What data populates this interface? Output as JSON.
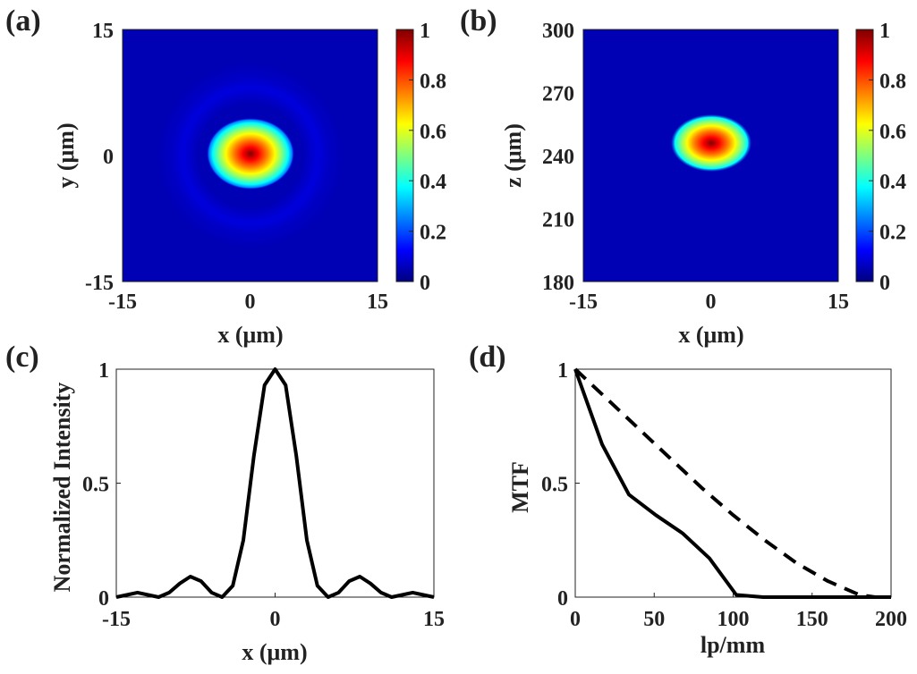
{
  "panel_labels": {
    "a": "(a)",
    "b": "(b)",
    "c": "(c)",
    "d": "(d)"
  },
  "colormap": {
    "name": "jet",
    "stops": [
      "#00007f",
      "#0000ff",
      "#007fff",
      "#00ffff",
      "#7fff7f",
      "#ffff00",
      "#ff7f00",
      "#ff0000",
      "#7f0000"
    ]
  },
  "chart_data": [
    {
      "id": "a",
      "type": "heatmap",
      "title": "",
      "xlabel": "x (μm)",
      "ylabel": "y (μm)",
      "xlim": [
        -15,
        15
      ],
      "ylim": [
        -15,
        15
      ],
      "xticks": [
        "-15",
        "0",
        "15"
      ],
      "yticks": [
        "15",
        "0",
        "-15"
      ],
      "spot": {
        "cx": 0,
        "cy": 0,
        "radius": 4
      },
      "colorbar": {
        "range": [
          0,
          1
        ],
        "ticks": [
          "1",
          "0.8",
          "0.6",
          "0.4",
          "0.2",
          "0"
        ]
      }
    },
    {
      "id": "b",
      "type": "heatmap",
      "title": "",
      "xlabel": "x (μm)",
      "ylabel": "z (μm)",
      "xlim": [
        -15,
        15
      ],
      "ylim": [
        180,
        300
      ],
      "xticks": [
        "-15",
        "0",
        "15"
      ],
      "yticks": [
        "300",
        "270",
        "240",
        "210",
        "180"
      ],
      "spot": {
        "cx": 0,
        "cy": 245,
        "halfwidth_x": 5,
        "halfwidth_z": 10
      },
      "colorbar": {
        "range": [
          0,
          1
        ],
        "ticks": [
          "1",
          "0.8",
          "0.6",
          "0.4",
          "0.2",
          "0"
        ]
      }
    },
    {
      "id": "c",
      "type": "line",
      "title": "",
      "xlabel": "x (μm)",
      "ylabel": "Normalized Intensity",
      "xlim": [
        -15,
        15
      ],
      "ylim": [
        0,
        1
      ],
      "xticks": [
        "-15",
        "0",
        "15"
      ],
      "yticks": [
        "1",
        "0.5",
        "0"
      ],
      "series": [
        {
          "style": "solid",
          "x": [
            -15,
            -14,
            -13,
            -12,
            -11,
            -10,
            -9,
            -8,
            -7,
            -6,
            -5,
            -4,
            -3,
            -2,
            -1,
            0,
            1,
            2,
            3,
            4,
            5,
            6,
            7,
            8,
            9,
            10,
            11,
            12,
            13,
            14,
            15
          ],
          "y": [
            0.0,
            0.01,
            0.02,
            0.01,
            0.0,
            0.02,
            0.06,
            0.09,
            0.07,
            0.02,
            0.0,
            0.05,
            0.25,
            0.62,
            0.93,
            1.0,
            0.93,
            0.62,
            0.25,
            0.05,
            0.0,
            0.02,
            0.07,
            0.09,
            0.06,
            0.02,
            0.0,
            0.01,
            0.02,
            0.01,
            0.0
          ]
        }
      ]
    },
    {
      "id": "d",
      "type": "line",
      "title": "",
      "xlabel": "lp/mm",
      "ylabel": "MTF",
      "xlim": [
        0,
        200
      ],
      "ylim": [
        0,
        1
      ],
      "xticks": [
        "0",
        "50",
        "100",
        "150",
        "200"
      ],
      "yticks": [
        "1",
        "0.5",
        "0"
      ],
      "series": [
        {
          "style": "solid",
          "x": [
            0,
            17,
            34,
            51,
            68,
            85,
            102,
            119,
            136,
            153,
            170,
            187,
            200
          ],
          "y": [
            1.0,
            0.67,
            0.45,
            0.36,
            0.28,
            0.17,
            0.01,
            0.0,
            0.0,
            0.0,
            0.0,
            0.0,
            0.0
          ]
        },
        {
          "style": "dashed",
          "x": [
            0,
            20,
            40,
            60,
            80,
            100,
            120,
            140,
            160,
            180,
            190,
            200
          ],
          "y": [
            1.0,
            0.87,
            0.74,
            0.61,
            0.48,
            0.36,
            0.25,
            0.15,
            0.07,
            0.01,
            0.0,
            0.0
          ]
        }
      ]
    }
  ]
}
